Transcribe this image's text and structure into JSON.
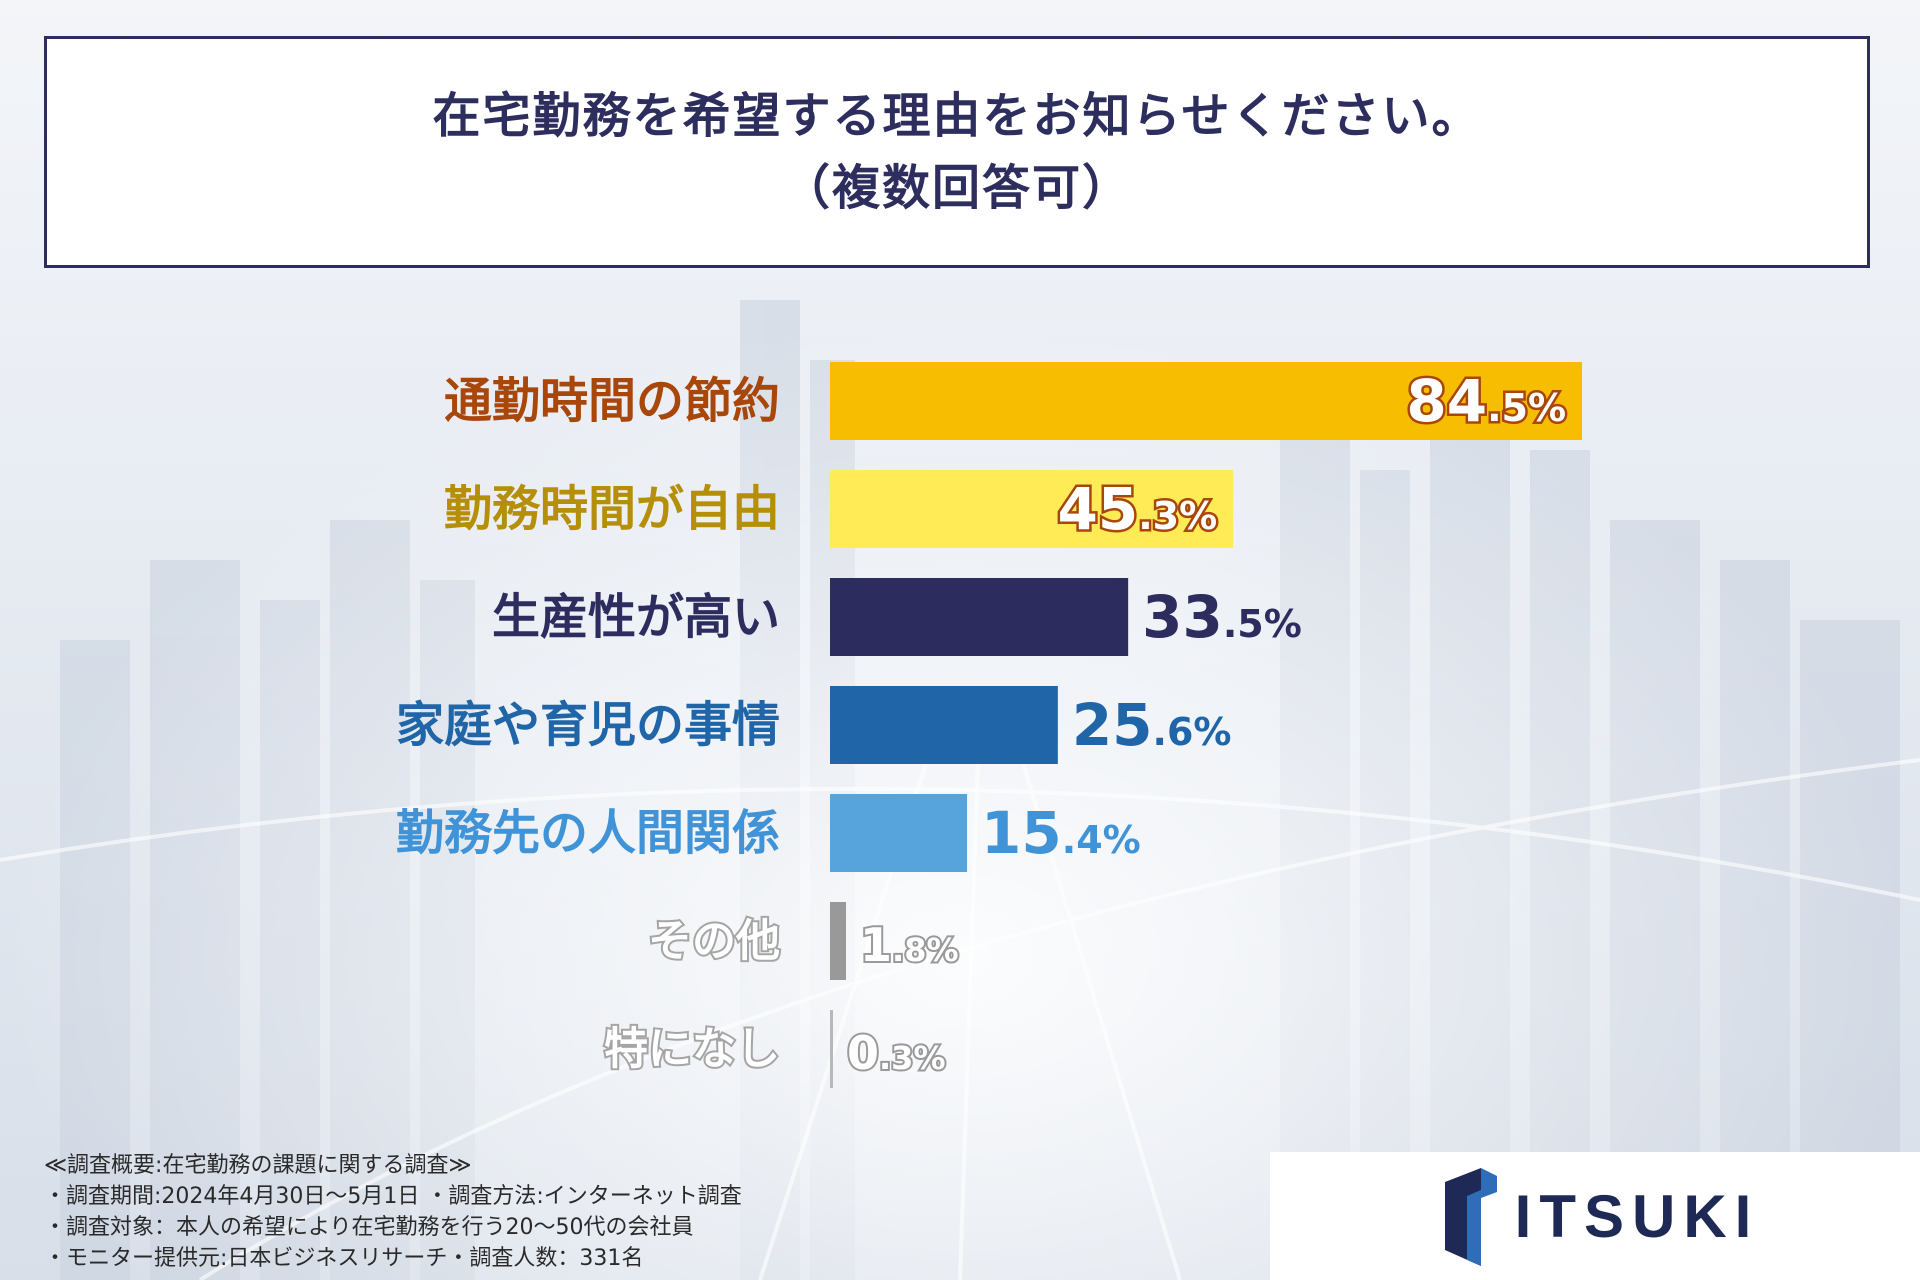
{
  "title": {
    "line1": "在宅勤務を希望する理由をお知らせください。",
    "line2": "（複数回答可）"
  },
  "chart_data": {
    "type": "bar",
    "orientation": "horizontal",
    "title": "在宅勤務を希望する理由をお知らせください。（複数回答可）",
    "categories": [
      "通勤時間の節約",
      "勤務時間が自由",
      "生産性が高い",
      "家庭や育児の事情",
      "勤務先の人間関係",
      "その他",
      "特になし"
    ],
    "values": [
      84.5,
      45.3,
      33.5,
      25.6,
      15.4,
      1.8,
      0.3
    ],
    "unit": "%",
    "colors": [
      "#f7bd00",
      "#feeb55",
      "#2d2c5e",
      "#1f65a8",
      "#57a4dd",
      "#999999",
      "#b8b8b8"
    ],
    "label_colors": [
      "#a9460a",
      "#b58f08",
      "#2d2c5e",
      "#1f65a8",
      "#3f93d6",
      "#a5a5a5",
      "#a5a5a5"
    ],
    "xlim": [
      0,
      100
    ],
    "xlabel": "",
    "ylabel": "",
    "legend": "none",
    "grid": false
  },
  "footnote": {
    "lines": [
      "≪調査概要:在宅勤務の課題に関する調査≫",
      "・調査期間:2024年4月30日～5月1日 ・調査方法:インターネット調査",
      "・調査対象：本人の希望により在宅勤務を行う20～50代の会社員",
      "・モニター提供元:日本ビジネスリサーチ・調査人数：331名"
    ]
  },
  "logo": {
    "text": "ITSUKI",
    "mark_icon": "itsuki-logo-mark-icon",
    "color": "#1e2a55",
    "accent": "#2f6db8"
  }
}
